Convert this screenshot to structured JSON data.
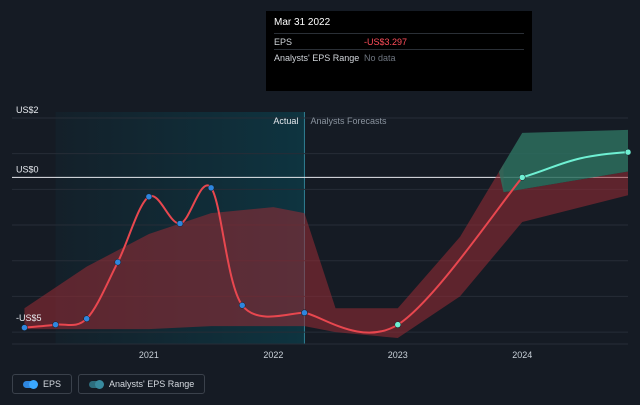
{
  "tooltip": {
    "date": "Mar 31 2022",
    "rows": [
      {
        "label": "EPS",
        "value": "-US$3.297"
      },
      {
        "label": "Analysts' EPS Range",
        "value": "No data"
      }
    ]
  },
  "legend": {
    "eps_label": "EPS",
    "range_label": "Analysts' EPS Range"
  },
  "colors": {
    "eps_line": "#e8474f",
    "forecast_line": "#6ff0d3",
    "actual_point": "#2e86de",
    "range_down": "#9a2c34",
    "range_up": "#2d6e5e",
    "actual_band": "#0e3440"
  },
  "chart_data": {
    "type": "line",
    "section_labels": {
      "actual": "Actual",
      "forecast": "Analysts Forecasts"
    },
    "y_ticks": [
      {
        "value": 2,
        "label": "US$2"
      },
      {
        "value": 0,
        "label": "US$0"
      },
      {
        "value": -5,
        "label": "-US$5"
      }
    ],
    "x_ticks": [
      {
        "value": 2021.0,
        "label": "2021"
      },
      {
        "value": 2022.0,
        "label": "2022"
      },
      {
        "value": 2023.0,
        "label": "2023"
      },
      {
        "value": 2024.0,
        "label": "2024"
      }
    ],
    "xlim": [
      2019.9,
      2024.85
    ],
    "ylim": [
      -5.6,
      2.2
    ],
    "actual_band": [
      2020.25,
      2022.25
    ],
    "series": [
      {
        "kind": "actual",
        "points": [
          {
            "x": 2020.0,
            "y": -5.05
          },
          {
            "x": 2020.25,
            "y": -4.95
          },
          {
            "x": 2020.5,
            "y": -4.75
          },
          {
            "x": 2020.75,
            "y": -2.85
          },
          {
            "x": 2021.0,
            "y": -0.65
          },
          {
            "x": 2021.25,
            "y": -1.55
          },
          {
            "x": 2021.5,
            "y": -0.35
          },
          {
            "x": 2021.75,
            "y": -4.3
          },
          {
            "x": 2022.25,
            "y": -4.55
          }
        ]
      },
      {
        "kind": "forecast",
        "points": [
          {
            "x": 2022.25,
            "y": -4.55
          },
          {
            "x": 2023.0,
            "y": -4.95
          },
          {
            "x": 2024.0,
            "y": 0.0
          },
          {
            "x": 2024.85,
            "y": 0.85
          }
        ]
      }
    ],
    "range_band": {
      "x": [
        2020.0,
        2020.5,
        2021.0,
        2021.5,
        2022.0,
        2022.25,
        2022.5,
        2023.0,
        2023.5,
        2024.0,
        2024.85
      ],
      "upper": [
        -4.4,
        -3.0,
        -1.9,
        -1.2,
        -1.0,
        -1.2,
        -4.4,
        -4.4,
        -2.0,
        1.5,
        1.6
      ],
      "lower": [
        -5.1,
        -5.1,
        -5.1,
        -5.0,
        -5.0,
        -5.0,
        -5.2,
        -5.4,
        -4.0,
        -1.5,
        -0.6
      ]
    }
  }
}
